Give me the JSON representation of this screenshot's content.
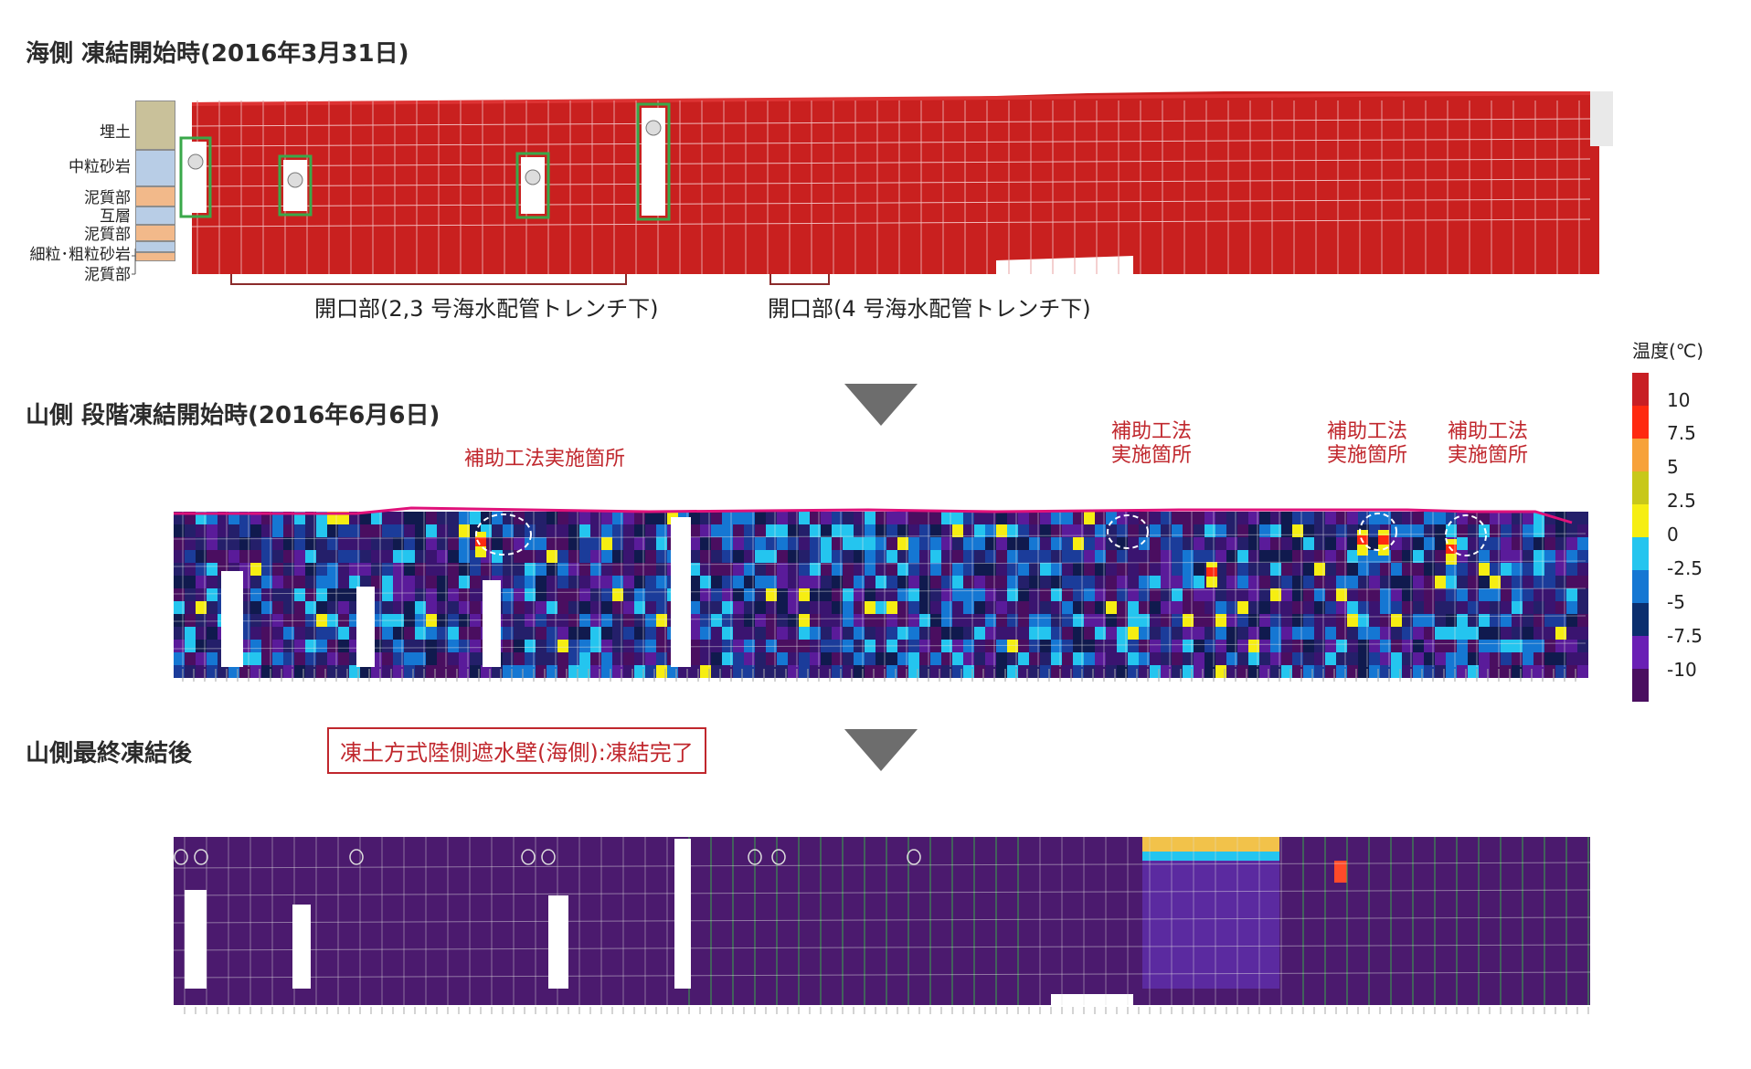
{
  "titles": {
    "sea_side": "海側 凍結開始時(2016年3月31日)",
    "mountain_stage": "山側 段階凍結開始時(2016年6月6日)",
    "mountain_final": "山側最終凍結後"
  },
  "strata_legend": [
    {
      "label": "埋土",
      "color": "#c9c19a"
    },
    {
      "label": "中粒砂岩",
      "color": "#b8cde6"
    },
    {
      "label": "泥質部",
      "color": "#f2b98a"
    },
    {
      "label": "互層",
      "color": "#b8cde6"
    },
    {
      "label": "泥質部",
      "color": "#f2b98a"
    },
    {
      "label": "細粒･粗粒砂岩",
      "color": "#b8cde6"
    },
    {
      "label": "泥質部",
      "color": "#f2b98a"
    }
  ],
  "openings": {
    "left": "開口部(2,3 号海水配管トレンチ下)",
    "right": "開口部(4 号海水配管トレンチ下)"
  },
  "auxiliary": {
    "label_single": "補助工法実施箇所",
    "label_a_line1": "補助工法",
    "label_a_line2": "実施箇所",
    "label_b_line1": "補助工法",
    "label_b_line2": "実施箇所",
    "label_c_line1": "補助工法",
    "label_c_line2": "実施箇所"
  },
  "completion_box": "凍土方式陸側遮水壁(海側):凍結完了",
  "temperature_scale": {
    "title": "温度(℃)",
    "ticks": [
      "10",
      "7.5",
      "5",
      "2.5",
      "0",
      "-2.5",
      "-5",
      "-7.5",
      "-10"
    ],
    "colors": [
      "#c81f24",
      "#ff2a10",
      "#f7a23a",
      "#c8c81a",
      "#f6ee12",
      "#24c5ef",
      "#1577d3",
      "#0b2e6e",
      "#6a1fb5",
      "#4a0e60"
    ]
  },
  "colors": {
    "frozen_red": "#c9201f",
    "deep_purple": "#4b1a6e",
    "pink_line": "#e0127a",
    "green_box": "#3aa84a"
  }
}
